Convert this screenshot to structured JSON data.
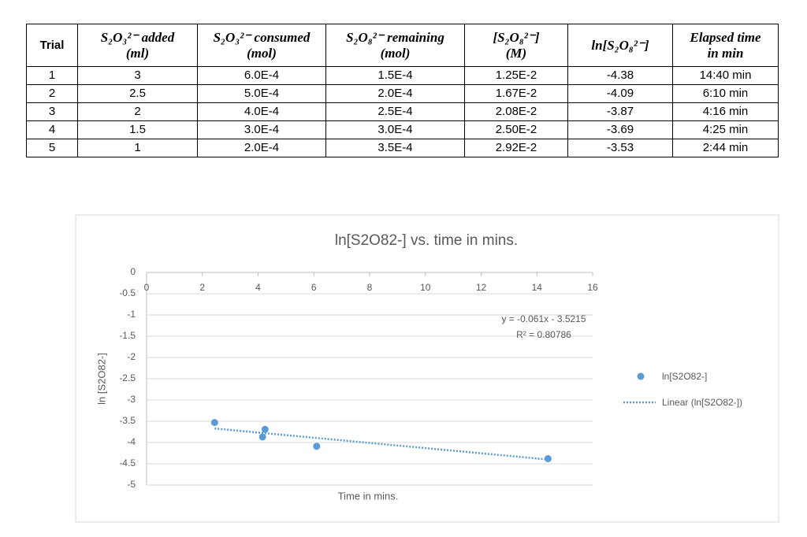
{
  "table": {
    "header": [
      [
        "Trial"
      ],
      [
        "S₂O₃²⁻ added",
        "(ml)"
      ],
      [
        "S₂O₃²⁻ consumed",
        "(mol)"
      ],
      [
        "S₂O₈²⁻ remaining",
        "(mol)"
      ],
      [
        "[S₂O₈²⁻]",
        "(M)"
      ],
      [
        "ln[S₂O₈²⁻]"
      ],
      [
        "Elapsed time",
        "in min"
      ]
    ],
    "rows": [
      [
        "1",
        "3",
        "6.0E-4",
        "1.5E-4",
        "1.25E-2",
        "-4.38",
        "14:40 min"
      ],
      [
        "2",
        "2.5",
        "5.0E-4",
        "2.0E-4",
        "1.67E-2",
        "-4.09",
        "6:10 min"
      ],
      [
        "3",
        "2",
        "4.0E-4",
        "2.5E-4",
        "2.08E-2",
        "-3.87",
        "4:16 min"
      ],
      [
        "4",
        "1.5",
        "3.0E-4",
        "3.0E-4",
        "2.50E-2",
        "-3.69",
        "4:25 min"
      ],
      [
        "5",
        "1",
        "2.0E-4",
        "3.5E-4",
        "2.92E-2",
        "-3.53",
        "2:44 min"
      ]
    ]
  },
  "chart_data": {
    "type": "scatter",
    "title": "ln[S2O82-] vs. time in mins.",
    "x_label": "Time in mins.",
    "y_label": "ln [S2O82-]",
    "series": [
      {
        "name": "ln[S2O82-]",
        "color": "#5b9bd5",
        "x": [
          14.4,
          6.1,
          4.16,
          4.25,
          2.44
        ],
        "values": [
          -4.38,
          -4.09,
          -3.87,
          -3.69,
          -3.53
        ]
      }
    ],
    "trendline": {
      "name": "Linear  (ln[S2O82-])",
      "color": "#5b9bd5",
      "slope": -0.061,
      "intercept": -3.5215,
      "equation": "y = -0.061x - 3.5215",
      "r2_label": "R² = 0.80786"
    },
    "xlim": [
      0,
      16
    ],
    "xticks": [
      0,
      2,
      4,
      6,
      8,
      10,
      12,
      14,
      16
    ],
    "ylim": [
      -5,
      0
    ],
    "yticks": [
      0,
      -0.5,
      -1,
      -1.5,
      -2,
      -2.5,
      -3,
      -3.5,
      -4,
      -4.5,
      -5
    ],
    "grid": true,
    "legend": "right"
  }
}
